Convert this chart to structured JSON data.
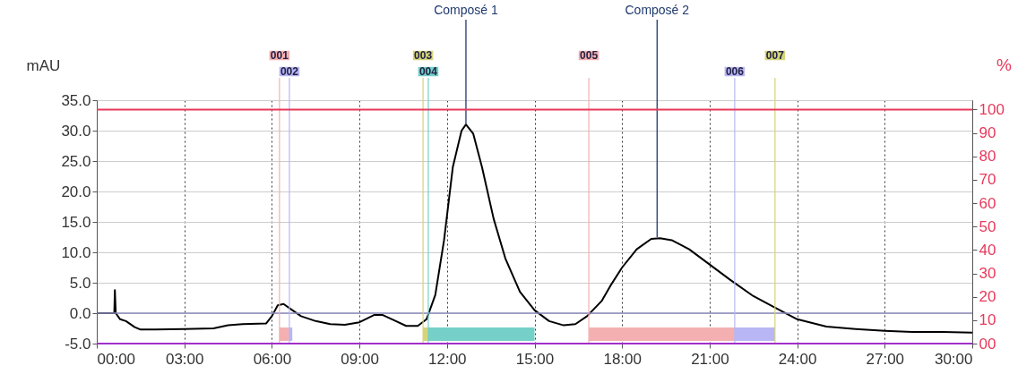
{
  "chart_data": {
    "type": "line",
    "ylabel": "mAU",
    "y2label": "%",
    "xlim": [
      0,
      30
    ],
    "xticks": [
      {
        "value": 0,
        "label": "00:00"
      },
      {
        "value": 3,
        "label": "03:00"
      },
      {
        "value": 6,
        "label": "06:00"
      },
      {
        "value": 9,
        "label": "09:00"
      },
      {
        "value": 12,
        "label": "12:00"
      },
      {
        "value": 15,
        "label": "15:00"
      },
      {
        "value": 18,
        "label": "18:00"
      },
      {
        "value": 21,
        "label": "21:00"
      },
      {
        "value": 24,
        "label": "24:00"
      },
      {
        "value": 27,
        "label": "27:00"
      },
      {
        "value": 30,
        "label": "30:00"
      }
    ],
    "ylim": [
      -5,
      35
    ],
    "yticks": [
      {
        "value": -5,
        "label": "-5.0"
      },
      {
        "value": 0,
        "label": "0.0"
      },
      {
        "value": 5,
        "label": "5.0"
      },
      {
        "value": 10,
        "label": "10.0"
      },
      {
        "value": 15,
        "label": "15.0"
      },
      {
        "value": 20,
        "label": "20.0"
      },
      {
        "value": 25,
        "label": "25.0"
      },
      {
        "value": 30,
        "label": "30.0"
      },
      {
        "value": 35,
        "label": "35.0"
      }
    ],
    "y2lim": [
      0,
      104
    ],
    "y2ticks": [
      {
        "value": 0,
        "label": "00"
      },
      10,
      20,
      30,
      40,
      50,
      60,
      70,
      80,
      90,
      100
    ],
    "grid": true,
    "series": [
      {
        "color": "#000000",
        "x": [
          0,
          0.6,
          0.62,
          0.65,
          0.8,
          1.0,
          1.3,
          1.5,
          2,
          3,
          4,
          4.5,
          5,
          5.8,
          6.0,
          6.2,
          6.4,
          6.7,
          7,
          7.5,
          8,
          8.5,
          9,
          9.5,
          9.8,
          10.2,
          10.6,
          11,
          11.3,
          11.6,
          11.9,
          12.2,
          12.5,
          12.65,
          12.9,
          13.2,
          13.6,
          14,
          14.5,
          15,
          15.5,
          16,
          16.4,
          16.8,
          17.3,
          17.6,
          18,
          18.5,
          19,
          19.3,
          19.7,
          20.3,
          21,
          21.7,
          22.5,
          23.2,
          24,
          25,
          26,
          27,
          28,
          29,
          30
        ],
        "values": [
          0,
          0,
          3.8,
          0,
          -1.0,
          -1.3,
          -2.3,
          -2.7,
          -2.7,
          -2.6,
          -2.5,
          -2.0,
          -1.8,
          -1.7,
          -0.5,
          1.3,
          1.5,
          0.5,
          -0.5,
          -1.3,
          -1.8,
          -1.9,
          -1.5,
          -0.3,
          -0.3,
          -1.2,
          -2.1,
          -2.1,
          -1.0,
          3,
          12,
          24,
          30,
          31,
          29.5,
          24,
          15.5,
          9,
          3.5,
          0.5,
          -1.3,
          -2.0,
          -1.8,
          -0.5,
          2,
          4.5,
          7.5,
          10.5,
          12.2,
          12.3,
          12,
          10.5,
          8,
          5.5,
          2.8,
          1,
          -1,
          -2.2,
          -2.6,
          -2.9,
          -3.1,
          -3.1,
          -3.2
        ]
      }
    ],
    "ref_lines": [
      {
        "axis": "y2",
        "value": 100,
        "color": "#e8385a"
      },
      {
        "axis": "y2",
        "value": 0,
        "color": "#a030c8"
      },
      {
        "axis": "y",
        "value": 0,
        "color": "#8c8cbc"
      },
      {
        "axis": "x",
        "value": 6.26,
        "color": "#f4b0b0"
      },
      {
        "axis": "x",
        "value": 6.6,
        "color": "#b8b6f4"
      },
      {
        "axis": "x",
        "value": 11.18,
        "color": "#d4d47a"
      },
      {
        "axis": "x",
        "value": 11.36,
        "color": "#74d0c8"
      },
      {
        "axis": "x",
        "value": 16.86,
        "color": "#f4b0b0"
      },
      {
        "axis": "x",
        "value": 21.86,
        "color": "#b8b6f4"
      },
      {
        "axis": "x",
        "value": 23.24,
        "color": "#d4d47a"
      }
    ],
    "bands": [
      {
        "axis": "x",
        "from": 6.26,
        "to": 6.6,
        "color": "#f4b0b0"
      },
      {
        "axis": "x",
        "from": 6.6,
        "to": 6.7,
        "color": "#b8b6f4"
      },
      {
        "axis": "x",
        "from": 11.18,
        "to": 11.36,
        "color": "#d4d47a"
      },
      {
        "axis": "x",
        "from": 11.36,
        "to": 15.0,
        "color": "#74d0c8"
      },
      {
        "axis": "x",
        "from": 16.86,
        "to": 21.86,
        "color": "#f4b0b0"
      },
      {
        "axis": "x",
        "from": 21.86,
        "to": 23.24,
        "color": "#b8b6f4"
      }
    ],
    "annotations": [
      {
        "text": "Composé 1",
        "x": 12.65,
        "y": 31
      },
      {
        "text": "Composé 2",
        "x": 19.2,
        "y": 12.5
      },
      "001",
      "002",
      "003",
      "004",
      "005",
      "006",
      "007"
    ]
  }
}
